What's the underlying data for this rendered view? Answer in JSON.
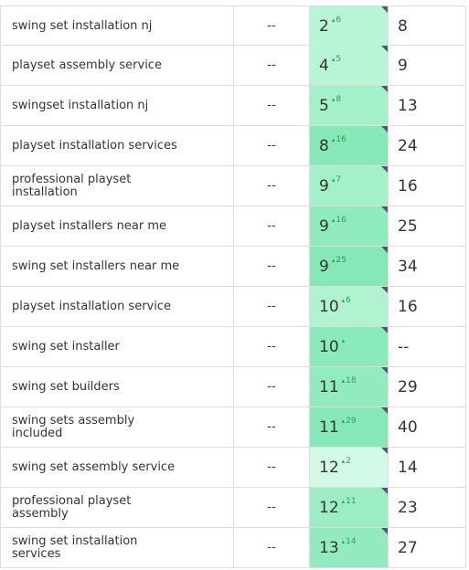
{
  "table": {
    "rows": [
      {
        "keyword": "swing set installation nj",
        "volume": "--",
        "rank": 2,
        "change": 6,
        "color": "#b8f5d6",
        "previous": 8
      },
      {
        "keyword": "playset assembly service",
        "volume": "--",
        "rank": 4,
        "change": 5,
        "color": "#b8f5d6",
        "previous": 9
      },
      {
        "keyword": "swingset installation nj",
        "volume": "--",
        "rank": 5,
        "change": 8,
        "color": "#a3f0c9",
        "previous": 13
      },
      {
        "keyword": "playset installation services",
        "volume": "--",
        "rank": 8,
        "change": 16,
        "color": "#86e8b6",
        "previous": 24
      },
      {
        "keyword": "professional playset installation",
        "volume": "--",
        "rank": 9,
        "change": 7,
        "color": "#a3f0c9",
        "previous": 16
      },
      {
        "keyword": "playset installers near me",
        "volume": "--",
        "rank": 9,
        "change": 16,
        "color": "#8febbd",
        "previous": 25
      },
      {
        "keyword": "swing set installers near me",
        "volume": "--",
        "rank": 9,
        "change": 25,
        "color": "#86e8b6",
        "previous": 34
      },
      {
        "keyword": "playset installation service",
        "volume": "--",
        "rank": 10,
        "change": 6,
        "color": "#b1f3d1",
        "previous": 16
      },
      {
        "keyword": "swing set installer",
        "volume": "--",
        "rank": 10,
        "color": "#8aeab9",
        "previous": "--"
      },
      {
        "keyword": "swing set builders",
        "volume": "--",
        "rank": 11,
        "change": 18,
        "color": "#92ebbf",
        "previous": 29
      },
      {
        "keyword": "swing sets assembly included",
        "volume": "--",
        "rank": 11,
        "change": 29,
        "color": "#86e8b6",
        "previous": 40
      },
      {
        "keyword": "swing set assembly service",
        "volume": "--",
        "rank": 12,
        "change": 2,
        "color": "#d3fae6",
        "previous": 14
      },
      {
        "keyword": "professional playset assembly",
        "volume": "--",
        "rank": 12,
        "change": 11,
        "color": "#9beec4",
        "previous": 23
      },
      {
        "keyword": "swing set installation services",
        "volume": "--",
        "rank": 13,
        "change": 14,
        "color": "#92ebbf",
        "previous": 27
      }
    ]
  }
}
